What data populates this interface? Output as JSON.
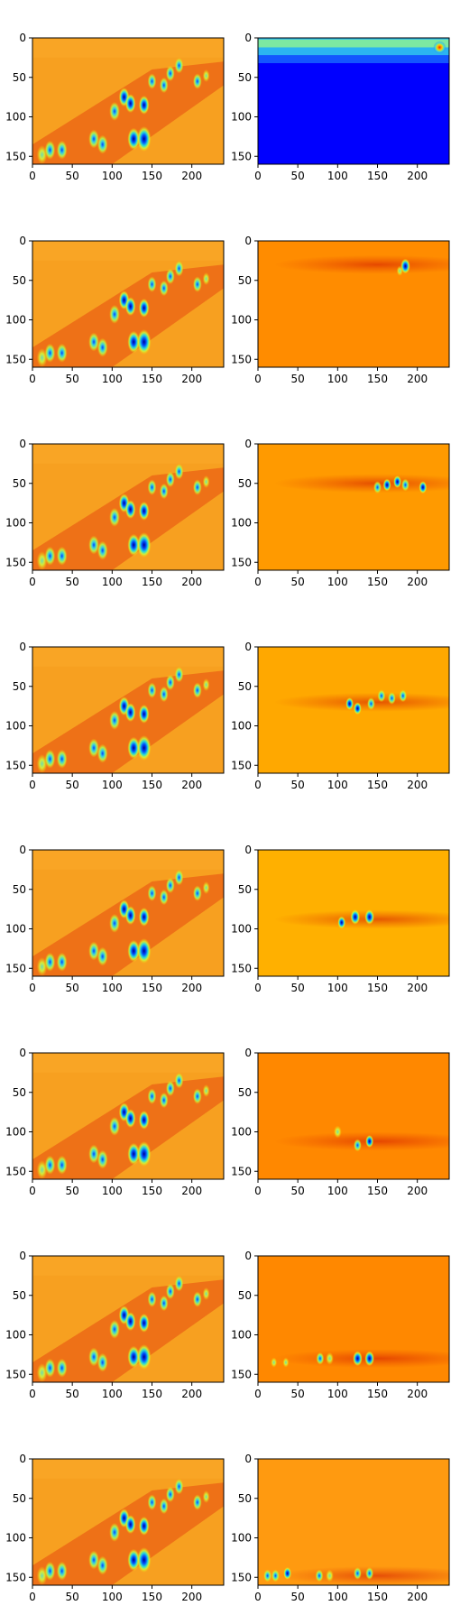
{
  "figure": {
    "rows": 8,
    "cols": 2,
    "xticks": [
      "0",
      "50",
      "100",
      "150",
      "200"
    ],
    "yticks": [
      "0",
      "50",
      "100",
      "150"
    ]
  },
  "chart_data": {
    "type": "heatmap",
    "colormap": "jet",
    "x_range": [
      0,
      240
    ],
    "y_range": [
      0,
      160
    ],
    "y_axis_inverted": true,
    "xtick_values": [
      0,
      50,
      100,
      150,
      200
    ],
    "ytick_values": [
      0,
      50,
      100,
      150
    ],
    "grid": false,
    "left_panels_background": "#F7A020",
    "right_panels_background": [
      "#0000FF",
      "#FF8C00",
      "#FF9A00",
      "#FFA800",
      "#FFB000",
      "#FF8800",
      "#FF8800",
      "#FF9A10"
    ],
    "blob_intensity_scale": "0 = background orange/yellow, 1 = deep blue, negative = red",
    "left_blobs": [
      {
        "x": 12,
        "y": 148,
        "v": 0.55,
        "r": 6
      },
      {
        "x": 22,
        "y": 142,
        "v": 0.6,
        "r": 6
      },
      {
        "x": 37,
        "y": 142,
        "v": 0.7,
        "r": 6
      },
      {
        "x": 77,
        "y": 128,
        "v": 0.65,
        "r": 6
      },
      {
        "x": 88,
        "y": 135,
        "v": 0.7,
        "r": 6
      },
      {
        "x": 103,
        "y": 93,
        "v": 0.7,
        "r": 6
      },
      {
        "x": 115,
        "y": 75,
        "v": 0.8,
        "r": 6
      },
      {
        "x": 123,
        "y": 83,
        "v": 0.85,
        "r": 6
      },
      {
        "x": 127,
        "y": 128,
        "v": 0.9,
        "r": 7
      },
      {
        "x": 140,
        "y": 128,
        "v": 0.95,
        "r": 8
      },
      {
        "x": 140,
        "y": 85,
        "v": 0.8,
        "r": 6
      },
      {
        "x": 150,
        "y": 55,
        "v": 0.7,
        "r": 5
      },
      {
        "x": 165,
        "y": 60,
        "v": 0.75,
        "r": 5
      },
      {
        "x": 173,
        "y": 45,
        "v": 0.7,
        "r": 5
      },
      {
        "x": 184,
        "y": 35,
        "v": 0.6,
        "r": 5
      },
      {
        "x": 207,
        "y": 55,
        "v": 0.7,
        "r": 5
      },
      {
        "x": 218,
        "y": 48,
        "v": 0.55,
        "r": 4
      }
    ],
    "right_blobs": [
      [],
      [
        {
          "x": 185,
          "y": 32,
          "v": 0.95,
          "r": 6
        },
        {
          "x": 178,
          "y": 38,
          "v": 0.5,
          "r": 4
        }
      ],
      [
        {
          "x": 150,
          "y": 55,
          "v": 0.7,
          "r": 5
        },
        {
          "x": 162,
          "y": 52,
          "v": 0.9,
          "r": 5
        },
        {
          "x": 175,
          "y": 48,
          "v": 0.85,
          "r": 5
        },
        {
          "x": 185,
          "y": 52,
          "v": 0.7,
          "r": 5
        },
        {
          "x": 207,
          "y": 55,
          "v": 0.8,
          "r": 5
        }
      ],
      [
        {
          "x": 115,
          "y": 72,
          "v": 0.85,
          "r": 5
        },
        {
          "x": 125,
          "y": 78,
          "v": 0.8,
          "r": 5
        },
        {
          "x": 142,
          "y": 72,
          "v": 0.75,
          "r": 5
        },
        {
          "x": 155,
          "y": 62,
          "v": 0.7,
          "r": 5
        },
        {
          "x": 168,
          "y": 65,
          "v": 0.65,
          "r": 5
        },
        {
          "x": 182,
          "y": 62,
          "v": 0.7,
          "r": 5
        }
      ],
      [
        {
          "x": 105,
          "y": 92,
          "v": 0.8,
          "r": 5
        },
        {
          "x": 122,
          "y": 85,
          "v": 0.95,
          "r": 6
        },
        {
          "x": 140,
          "y": 85,
          "v": 0.95,
          "r": 6
        }
      ],
      [
        {
          "x": 100,
          "y": 100,
          "v": 0.4,
          "r": 5
        },
        {
          "x": 125,
          "y": 117,
          "v": 0.7,
          "r": 5
        },
        {
          "x": 140,
          "y": 112,
          "v": 0.9,
          "r": 5
        }
      ],
      [
        {
          "x": 20,
          "y": 135,
          "v": 0.5,
          "r": 4
        },
        {
          "x": 35,
          "y": 135,
          "v": 0.55,
          "r": 4
        },
        {
          "x": 78,
          "y": 130,
          "v": 0.6,
          "r": 5
        },
        {
          "x": 90,
          "y": 130,
          "v": 0.55,
          "r": 5
        },
        {
          "x": 125,
          "y": 130,
          "v": 0.9,
          "r": 6
        },
        {
          "x": 140,
          "y": 130,
          "v": 0.95,
          "r": 6
        }
      ],
      [
        {
          "x": 12,
          "y": 148,
          "v": 0.6,
          "r": 5
        },
        {
          "x": 22,
          "y": 148,
          "v": 0.7,
          "r": 5
        },
        {
          "x": 37,
          "y": 145,
          "v": 0.85,
          "r": 5
        },
        {
          "x": 77,
          "y": 148,
          "v": 0.6,
          "r": 5
        },
        {
          "x": 90,
          "y": 148,
          "v": 0.55,
          "r": 5
        },
        {
          "x": 125,
          "y": 145,
          "v": 0.6,
          "r": 5
        },
        {
          "x": 140,
          "y": 145,
          "v": 0.75,
          "r": 5
        }
      ]
    ],
    "right_band_centers_y": [
      12,
      30,
      50,
      70,
      88,
      112,
      130,
      148
    ]
  }
}
